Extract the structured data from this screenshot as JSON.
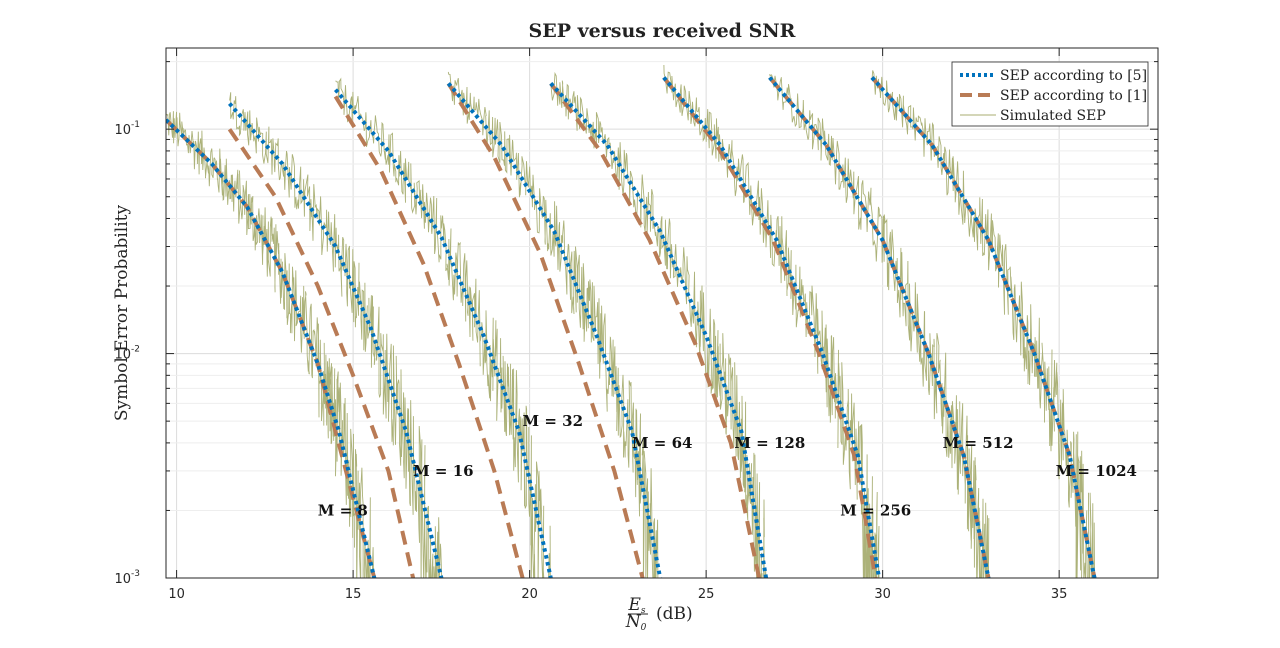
{
  "chart_data": {
    "type": "line",
    "title": "SEP versus received SNR",
    "xlabel": "(dB)",
    "xlabel_fraction": {
      "numerator": "E",
      "numerator_sub": "s",
      "denominator": "N",
      "denominator_sub": "0"
    },
    "ylabel": "Symbol Error Probability",
    "xlim": [
      9.7,
      37.8
    ],
    "ylim": [
      0.001,
      0.23
    ],
    "yscale": "log",
    "xticks": [
      10,
      15,
      20,
      25,
      30,
      35
    ],
    "xtick_labels": [
      "10",
      "15",
      "20",
      "25",
      "30",
      "35"
    ],
    "yticks": [
      0.001,
      0.01,
      0.1
    ],
    "ytick_labels": [
      {
        "base": "10",
        "exp": "-3"
      },
      {
        "base": "10",
        "exp": "-2"
      },
      {
        "base": "10",
        "exp": "-1"
      }
    ],
    "grid": true,
    "legend_position": "top-right",
    "legend": [
      "SEP according to [5]",
      "SEP according to [1]",
      "Simulated SEP"
    ],
    "colors": {
      "sep5": "#0072BD",
      "sep1": "#B97B55",
      "simulated": "#A8AE72"
    },
    "series": [
      {
        "M": 8,
        "label": "M = 8",
        "label_at": [
          14.0,
          0.002
        ],
        "sep5": {
          "x": [
            9.7,
            11.0,
            12.0,
            13.0,
            14.0,
            14.6,
            15.6
          ],
          "y": [
            0.11,
            0.07,
            0.045,
            0.023,
            0.009,
            0.0045,
            0.001
          ]
        },
        "sep1": {
          "x": [
            9.7,
            11.0,
            12.0,
            13.0,
            14.0,
            14.5,
            15.6
          ],
          "y": [
            0.11,
            0.07,
            0.045,
            0.023,
            0.009,
            0.0045,
            0.001
          ]
        }
      },
      {
        "M": 16,
        "label": "M = 16",
        "label_at": [
          16.7,
          0.003
        ],
        "sep5": {
          "x": [
            11.5,
            13.0,
            14.5,
            15.5,
            16.5,
            17.5
          ],
          "y": [
            0.13,
            0.07,
            0.03,
            0.013,
            0.0045,
            0.001
          ]
        },
        "sep1": {
          "x": [
            11.5,
            12.8,
            14.0,
            15.0,
            16.0,
            16.7
          ],
          "y": [
            0.1,
            0.05,
            0.02,
            0.008,
            0.003,
            0.001
          ]
        }
      },
      {
        "M": 32,
        "label": "M = 32",
        "label_at": [
          19.8,
          0.005
        ],
        "sep5": {
          "x": [
            14.5,
            16.0,
            17.5,
            18.7,
            19.7,
            20.6
          ],
          "y": [
            0.15,
            0.08,
            0.033,
            0.012,
            0.0045,
            0.001
          ]
        },
        "sep1": {
          "x": [
            14.5,
            15.8,
            17.0,
            18.0,
            19.0,
            19.8
          ],
          "y": [
            0.14,
            0.065,
            0.025,
            0.009,
            0.003,
            0.001
          ]
        }
      },
      {
        "M": 64,
        "label": "M = 64",
        "label_at": [
          22.9,
          0.004
        ],
        "sep5": {
          "x": [
            17.7,
            19.2,
            20.7,
            21.9,
            22.9,
            23.7
          ],
          "y": [
            0.16,
            0.085,
            0.035,
            0.012,
            0.0045,
            0.001
          ]
        },
        "sep1": {
          "x": [
            17.7,
            19.0,
            20.3,
            21.4,
            22.4,
            23.2
          ],
          "y": [
            0.16,
            0.075,
            0.028,
            0.009,
            0.003,
            0.001
          ]
        }
      },
      {
        "M": 128,
        "label": "M = 128",
        "label_at": [
          25.8,
          0.004
        ],
        "sep5": {
          "x": [
            20.6,
            22.2,
            23.7,
            25.0,
            26.0,
            26.7
          ],
          "y": [
            0.16,
            0.085,
            0.035,
            0.012,
            0.0045,
            0.001
          ]
        },
        "sep1": {
          "x": [
            20.6,
            22.0,
            23.4,
            24.7,
            25.7,
            26.5
          ],
          "y": [
            0.16,
            0.08,
            0.032,
            0.011,
            0.004,
            0.001
          ]
        }
      },
      {
        "M": 256,
        "label": "M = 256",
        "label_at": [
          28.8,
          0.002
        ],
        "sep5": {
          "x": [
            23.8,
            25.4,
            27.0,
            28.3,
            29.3,
            29.9
          ],
          "y": [
            0.17,
            0.085,
            0.032,
            0.01,
            0.0035,
            0.001
          ]
        },
        "sep1": {
          "x": [
            23.8,
            25.3,
            26.9,
            28.2,
            29.2,
            29.8
          ],
          "y": [
            0.17,
            0.085,
            0.032,
            0.01,
            0.0035,
            0.001
          ]
        }
      },
      {
        "M": 512,
        "label": "M = 512",
        "label_at": [
          31.7,
          0.004
        ],
        "sep5": {
          "x": [
            26.8,
            28.4,
            30.0,
            31.3,
            32.3,
            33.0
          ],
          "y": [
            0.17,
            0.085,
            0.032,
            0.01,
            0.0035,
            0.001
          ]
        },
        "sep1": {
          "x": [
            26.8,
            28.4,
            30.0,
            31.3,
            32.3,
            33.0
          ],
          "y": [
            0.17,
            0.085,
            0.032,
            0.01,
            0.0035,
            0.001
          ]
        }
      },
      {
        "M": 1024,
        "label": "M = 1024",
        "label_at": [
          34.9,
          0.003
        ],
        "sep5": {
          "x": [
            29.7,
            31.4,
            33.0,
            34.3,
            35.3,
            36.0
          ],
          "y": [
            0.17,
            0.085,
            0.032,
            0.01,
            0.0035,
            0.001
          ]
        },
        "sep1": {
          "x": [
            29.7,
            31.4,
            33.0,
            34.3,
            35.3,
            36.0
          ],
          "y": [
            0.17,
            0.085,
            0.032,
            0.01,
            0.0035,
            0.001
          ]
        }
      }
    ]
  }
}
